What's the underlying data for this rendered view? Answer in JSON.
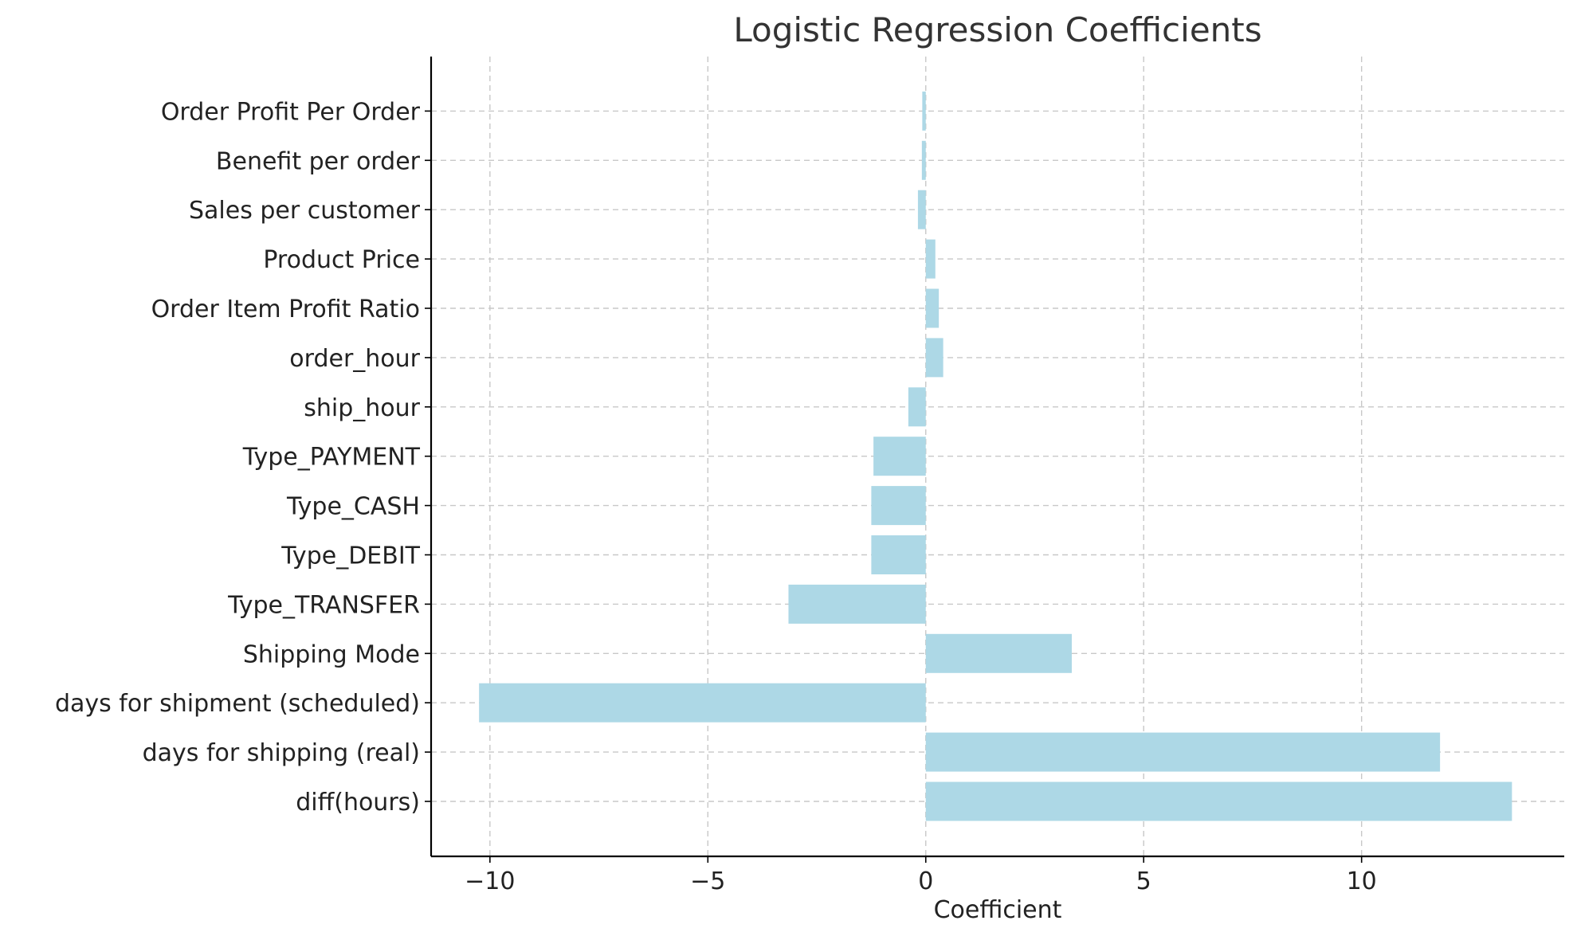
{
  "chart_data": {
    "type": "bar",
    "orientation": "horizontal",
    "title": "Logistic Regression Coefficients",
    "xlabel": "Coefficient",
    "ylabel": "",
    "categories": [
      "diff(hours)",
      "days for shipping (real)",
      "days for shipment (scheduled)",
      "Shipping Mode",
      "Type_TRANSFER",
      "Type_DEBIT",
      "Type_CASH",
      "Type_PAYMENT",
      "ship_hour",
      "order_hour",
      "Order Item Profit Ratio",
      "Product Price",
      "Sales per customer",
      "Benefit per order",
      "Order Profit Per Order"
    ],
    "values": [
      13.45,
      11.8,
      -10.25,
      3.35,
      -3.15,
      -1.25,
      -1.25,
      -1.2,
      -0.4,
      0.4,
      0.3,
      0.22,
      -0.18,
      -0.09,
      -0.08
    ],
    "xlim": [
      -11.35,
      14.65
    ],
    "xticks": [
      -10,
      -5,
      0,
      5,
      10
    ],
    "xtick_labels": [
      "−10",
      "−5",
      "0",
      "5",
      "10"
    ],
    "grid": true,
    "legend": "none",
    "bar_color": "#add8e6"
  }
}
